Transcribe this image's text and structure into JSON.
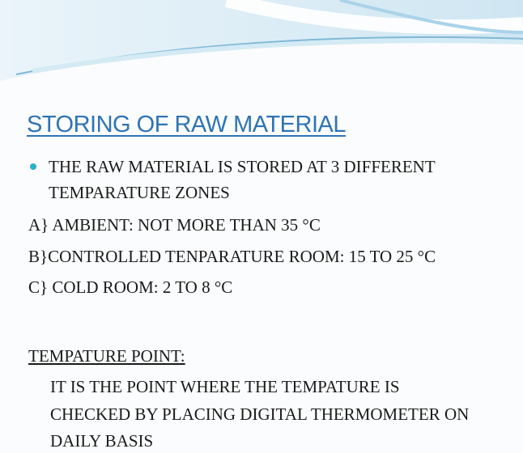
{
  "slide": {
    "title": "STORING OF RAW MATERIAL",
    "bullet": {
      "lines": [
        "THE RAW MATERIAL IS STORED AT 3 DIFFERENT",
        "TEMPARATURE ZONES"
      ]
    },
    "zones": [
      "A} AMBIENT: NOT MORE THAN 35  °C",
      "B}CONTROLLED TENPARATURE ROOM: 15 TO 25 °C",
      "C} COLD ROOM: 2 TO 8 °C"
    ],
    "section_heading": "TEMPATURE POINT:",
    "section_lines": [
      "IT IS THE POINT WHERE THE TEMPATURE IS",
      "CHECKED BY PLACING DIGITAL THERMOMETER ON",
      "DAILY BASIS"
    ]
  }
}
